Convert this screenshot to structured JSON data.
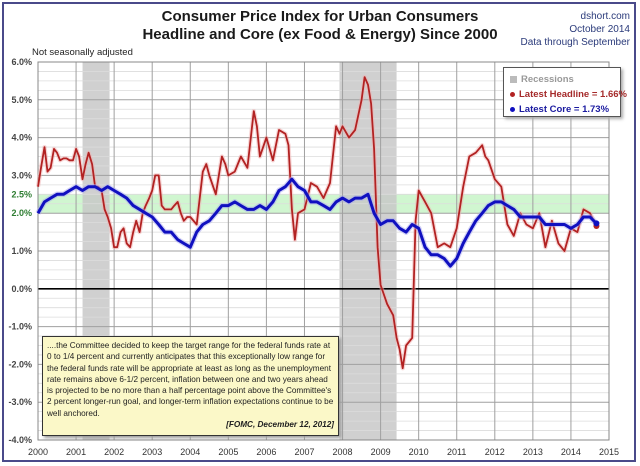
{
  "header": {
    "title_line1": "Consumer Price Index for Urban Consumers",
    "title_line2": "Headline and Core (ex Food & Energy) Since 2000",
    "source": "dshort.com",
    "date": "October 2014",
    "data_through": "Data through September",
    "subtitle": "Not seasonally adjusted"
  },
  "legend": {
    "recessions": "Recessions",
    "headline": "Latest Headline = 1.66%",
    "core": "Latest Core = 1.73%"
  },
  "note": {
    "text": "....the Committee decided to keep the target range for the federal funds rate at 0 to 1/4 percent and currently anticipates that this exceptionally low range for the federal funds rate will be appropriate at least as long as the unemployment rate remains above 6-1/2 percent, inflation between one and two years ahead is projected to be no more than a half percentage point above the Committee's 2 percent longer-run goal, and longer-term inflation expectations continue to be well anchored.",
    "source": "[FOMC, December 12, 2012]"
  },
  "colors": {
    "headline": "#b22222",
    "core": "#1010c0",
    "target_band": "#c8f5c8",
    "recession": "#c8c8c8"
  },
  "chart_data": {
    "type": "line",
    "title": "Consumer Price Index for Urban Consumers — Headline and Core (ex Food & Energy) Since 2000",
    "xlabel": "",
    "ylabel": "",
    "xlim": [
      2000,
      2015
    ],
    "ylim": [
      -4.0,
      6.0
    ],
    "x_ticks": [
      "2000",
      "2001",
      "2002",
      "2003",
      "2004",
      "2005",
      "2006",
      "2007",
      "2008",
      "2009",
      "2010",
      "2011",
      "2012",
      "2013",
      "2014",
      "2015"
    ],
    "y_ticks": [
      {
        "value": 6.0,
        "label": "6.0%"
      },
      {
        "value": 5.0,
        "label": "5.0%"
      },
      {
        "value": 4.0,
        "label": "4.0%"
      },
      {
        "value": 3.0,
        "label": "3.0%"
      },
      {
        "value": 2.5,
        "label": "2.5%",
        "highlight": true
      },
      {
        "value": 2.0,
        "label": "2.0%",
        "highlight": true
      },
      {
        "value": 1.0,
        "label": "1.0%"
      },
      {
        "value": 0.0,
        "label": "0.0%"
      },
      {
        "value": -1.0,
        "label": "-1.0%"
      },
      {
        "value": -2.0,
        "label": "-2.0%"
      },
      {
        "value": -3.0,
        "label": "-3.0%"
      },
      {
        "value": -4.0,
        "label": "-4.0%"
      }
    ],
    "grid": true,
    "target_band": [
      2.0,
      2.5
    ],
    "recessions": [
      [
        2001.17,
        2001.88
      ],
      [
        2007.92,
        2009.42
      ]
    ],
    "legend_position": "top-right",
    "series": [
      {
        "name": "Headline",
        "latest": "1.66%",
        "x": [
          2000.0,
          2000.08,
          2000.17,
          2000.25,
          2000.33,
          2000.42,
          2000.5,
          2000.58,
          2000.67,
          2000.75,
          2000.83,
          2000.92,
          2001.0,
          2001.08,
          2001.17,
          2001.25,
          2001.33,
          2001.42,
          2001.5,
          2001.58,
          2001.67,
          2001.75,
          2001.83,
          2001.92,
          2002.0,
          2002.08,
          2002.17,
          2002.25,
          2002.33,
          2002.42,
          2002.5,
          2002.58,
          2002.67,
          2002.75,
          2002.83,
          2002.92,
          2003.0,
          2003.08,
          2003.17,
          2003.25,
          2003.33,
          2003.42,
          2003.5,
          2003.58,
          2003.67,
          2003.75,
          2003.83,
          2003.92,
          2004.0,
          2004.17,
          2004.33,
          2004.42,
          2004.5,
          2004.67,
          2004.83,
          2004.92,
          2005.0,
          2005.17,
          2005.33,
          2005.5,
          2005.67,
          2005.75,
          2005.83,
          2006.0,
          2006.17,
          2006.33,
          2006.5,
          2006.58,
          2006.67,
          2006.75,
          2006.83,
          2007.0,
          2007.17,
          2007.33,
          2007.5,
          2007.67,
          2007.83,
          2007.92,
          2008.0,
          2008.17,
          2008.33,
          2008.5,
          2008.58,
          2008.67,
          2008.75,
          2008.83,
          2008.92,
          2009.0,
          2009.17,
          2009.33,
          2009.42,
          2009.5,
          2009.58,
          2009.67,
          2009.83,
          2009.92,
          2010.0,
          2010.17,
          2010.33,
          2010.5,
          2010.67,
          2010.83,
          2011.0,
          2011.17,
          2011.33,
          2011.5,
          2011.67,
          2011.75,
          2011.83,
          2012.0,
          2012.17,
          2012.33,
          2012.5,
          2012.67,
          2012.83,
          2013.0,
          2013.17,
          2013.33,
          2013.5,
          2013.67,
          2013.83,
          2014.0,
          2014.17,
          2014.33,
          2014.5,
          2014.67
        ],
        "y": [
          2.7,
          3.2,
          3.75,
          3.1,
          3.2,
          3.7,
          3.6,
          3.4,
          3.45,
          3.45,
          3.4,
          3.4,
          3.7,
          3.5,
          2.9,
          3.3,
          3.6,
          3.3,
          2.7,
          2.7,
          2.6,
          2.1,
          1.9,
          1.6,
          1.1,
          1.1,
          1.5,
          1.6,
          1.2,
          1.1,
          1.5,
          1.8,
          1.5,
          2.0,
          2.2,
          2.4,
          2.6,
          3.0,
          3.0,
          2.2,
          2.1,
          2.1,
          2.1,
          2.2,
          2.3,
          2.0,
          1.8,
          1.9,
          1.9,
          1.7,
          3.1,
          3.3,
          3.0,
          2.5,
          3.5,
          3.3,
          3.0,
          3.1,
          3.5,
          3.2,
          4.7,
          4.3,
          3.5,
          4.0,
          3.4,
          4.2,
          4.1,
          3.8,
          2.1,
          1.3,
          2.0,
          2.1,
          2.8,
          2.7,
          2.4,
          2.8,
          4.3,
          4.1,
          4.3,
          4.0,
          4.2,
          5.0,
          5.6,
          5.4,
          4.9,
          3.7,
          1.1,
          0.1,
          -0.4,
          -0.7,
          -1.3,
          -1.6,
          -2.1,
          -1.5,
          -1.3,
          1.8,
          2.6,
          2.3,
          2.0,
          1.1,
          1.2,
          1.1,
          1.6,
          2.7,
          3.5,
          3.6,
          3.8,
          3.5,
          3.4,
          2.9,
          2.7,
          1.7,
          1.4,
          2.0,
          1.7,
          1.6,
          2.0,
          1.1,
          1.8,
          1.2,
          1.0,
          1.6,
          1.5,
          2.1,
          2.0,
          1.66
        ]
      },
      {
        "name": "Core",
        "latest": "1.73%",
        "x": [
          2000.0,
          2000.17,
          2000.33,
          2000.5,
          2000.67,
          2000.83,
          2001.0,
          2001.17,
          2001.33,
          2001.5,
          2001.67,
          2001.83,
          2002.0,
          2002.17,
          2002.33,
          2002.5,
          2002.67,
          2002.83,
          2003.0,
          2003.17,
          2003.33,
          2003.5,
          2003.67,
          2003.83,
          2004.0,
          2004.17,
          2004.33,
          2004.5,
          2004.67,
          2004.83,
          2005.0,
          2005.17,
          2005.33,
          2005.5,
          2005.67,
          2005.83,
          2006.0,
          2006.17,
          2006.33,
          2006.5,
          2006.67,
          2006.83,
          2007.0,
          2007.17,
          2007.33,
          2007.5,
          2007.67,
          2007.83,
          2008.0,
          2008.17,
          2008.33,
          2008.5,
          2008.67,
          2008.83,
          2009.0,
          2009.17,
          2009.33,
          2009.5,
          2009.67,
          2009.83,
          2010.0,
          2010.17,
          2010.33,
          2010.5,
          2010.67,
          2010.83,
          2011.0,
          2011.17,
          2011.33,
          2011.5,
          2011.67,
          2011.83,
          2012.0,
          2012.17,
          2012.33,
          2012.5,
          2012.67,
          2012.83,
          2013.0,
          2013.17,
          2013.33,
          2013.5,
          2013.67,
          2013.83,
          2014.0,
          2014.17,
          2014.33,
          2014.5,
          2014.67
        ],
        "y": [
          2.0,
          2.3,
          2.4,
          2.5,
          2.5,
          2.6,
          2.7,
          2.6,
          2.7,
          2.7,
          2.6,
          2.7,
          2.6,
          2.5,
          2.4,
          2.2,
          2.1,
          2.0,
          1.9,
          1.7,
          1.5,
          1.5,
          1.3,
          1.2,
          1.1,
          1.5,
          1.7,
          1.8,
          2.0,
          2.2,
          2.2,
          2.3,
          2.2,
          2.1,
          2.1,
          2.2,
          2.1,
          2.3,
          2.6,
          2.7,
          2.9,
          2.7,
          2.6,
          2.3,
          2.3,
          2.2,
          2.1,
          2.3,
          2.4,
          2.3,
          2.4,
          2.4,
          2.5,
          2.0,
          1.7,
          1.8,
          1.8,
          1.6,
          1.5,
          1.7,
          1.6,
          1.1,
          0.9,
          0.9,
          0.8,
          0.6,
          0.8,
          1.2,
          1.5,
          1.8,
          2.0,
          2.2,
          2.3,
          2.3,
          2.2,
          2.1,
          1.9,
          1.9,
          1.9,
          1.9,
          1.7,
          1.7,
          1.7,
          1.7,
          1.6,
          1.7,
          1.9,
          1.9,
          1.73
        ]
      }
    ]
  }
}
